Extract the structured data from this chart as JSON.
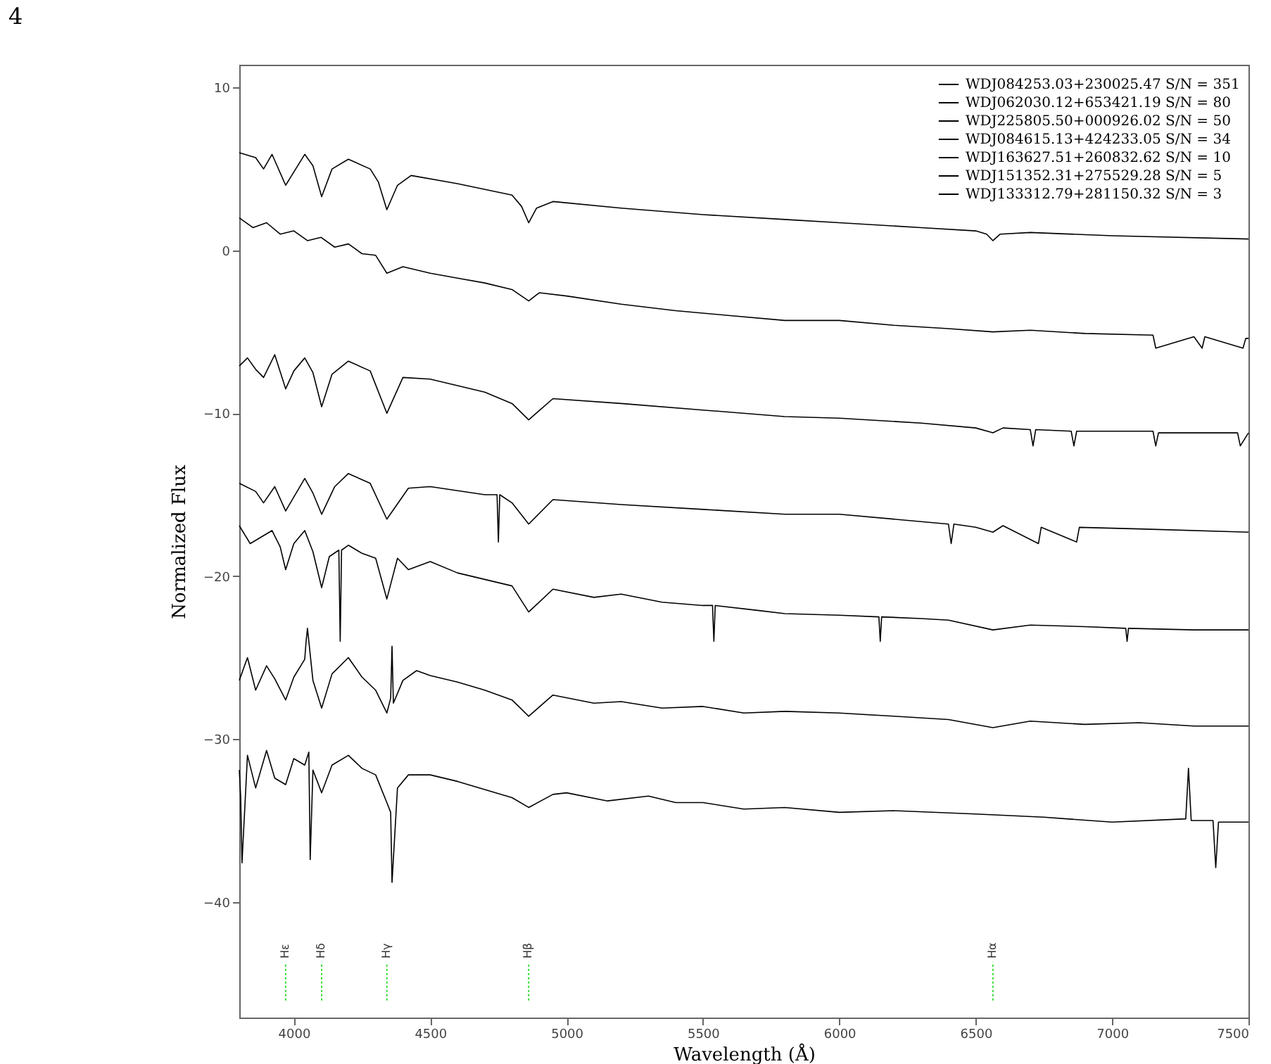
{
  "chart_data": {
    "type": "line",
    "xlabel": "Wavelength (Å)",
    "ylabel": "Normalized Flux",
    "annotations": [
      "4"
    ],
    "xlim": [
      3800,
      7500
    ],
    "ylim": [
      -47.1,
      11.4
    ],
    "xticks": [
      4000,
      4500,
      5000,
      5500,
      6000,
      6500,
      7000,
      7500
    ],
    "yticks": [
      -40,
      -30,
      -20,
      -10,
      0,
      10
    ],
    "grid": false,
    "legend": "top right",
    "series": [
      {
        "name": "WDJ084253.03+230025.47 S/N = 351",
        "color": "#000000",
        "x": [
          3800,
          3860,
          3889,
          3920,
          3970,
          4040,
          4070,
          4102,
          4140,
          4200,
          4280,
          4310,
          4341,
          4380,
          4430,
          4600,
          4800,
          4835,
          4861,
          4890,
          4950,
          5200,
          5500,
          5800,
          6000,
          6300,
          6500,
          6540,
          6563,
          6590,
          6700,
          7000,
          7500
        ],
        "values": [
          6.0,
          5.7,
          5.0,
          5.9,
          4.0,
          5.9,
          5.2,
          3.3,
          5.0,
          5.6,
          5.0,
          4.2,
          2.5,
          4.0,
          4.6,
          4.1,
          3.4,
          2.7,
          1.7,
          2.6,
          3.0,
          2.6,
          2.2,
          1.9,
          1.7,
          1.4,
          1.2,
          1.0,
          0.6,
          1.0,
          1.1,
          0.9,
          0.7
        ]
      },
      {
        "name": "WDJ062030.12+653421.19 S/N = 80",
        "color": "#000000",
        "x": [
          3800,
          3850,
          3900,
          3950,
          4000,
          4050,
          4100,
          4150,
          4200,
          4250,
          4300,
          4341,
          4400,
          4500,
          4600,
          4700,
          4800,
          4861,
          4900,
          5000,
          5200,
          5400,
          5600,
          5800,
          6000,
          6200,
          6400,
          6563,
          6700,
          6900,
          7150,
          7160,
          7300,
          7330,
          7340,
          7480,
          7490,
          7500
        ],
        "values": [
          2.0,
          1.4,
          1.7,
          1.0,
          1.2,
          0.6,
          0.8,
          0.2,
          0.4,
          -0.2,
          -0.3,
          -1.4,
          -1.0,
          -1.4,
          -1.7,
          -2.0,
          -2.4,
          -3.1,
          -2.6,
          -2.8,
          -3.3,
          -3.7,
          -4.0,
          -4.3,
          -4.3,
          -4.6,
          -4.8,
          -5.0,
          -4.9,
          -5.1,
          -5.2,
          -6.0,
          -5.3,
          -6.0,
          -5.3,
          -6.0,
          -5.4,
          -5.4
        ]
      },
      {
        "name": "WDJ225805.50+000926.02 S/N = 50",
        "color": "#000000",
        "x": [
          3800,
          3830,
          3860,
          3889,
          3930,
          3970,
          4000,
          4040,
          4070,
          4102,
          4140,
          4200,
          4280,
          4341,
          4400,
          4500,
          4600,
          4700,
          4800,
          4861,
          4950,
          5200,
          5500,
          5800,
          6000,
          6300,
          6500,
          6563,
          6600,
          6700,
          6710,
          6720,
          6850,
          6860,
          6870,
          7150,
          7160,
          7170,
          7460,
          7470,
          7500
        ],
        "values": [
          -7.1,
          -6.6,
          -7.3,
          -7.8,
          -6.4,
          -8.5,
          -7.4,
          -6.6,
          -7.5,
          -9.6,
          -7.6,
          -6.8,
          -7.4,
          -10.0,
          -7.8,
          -7.9,
          -8.3,
          -8.7,
          -9.4,
          -10.4,
          -9.1,
          -9.4,
          -9.8,
          -10.2,
          -10.3,
          -10.6,
          -10.9,
          -11.2,
          -10.9,
          -11.0,
          -12.0,
          -11.0,
          -11.1,
          -12.0,
          -11.1,
          -11.1,
          -12.0,
          -11.2,
          -11.2,
          -12.0,
          -11.2
        ]
      },
      {
        "name": "WDJ084615.13+424233.05 S/N = 34",
        "color": "#000000",
        "x": [
          3800,
          3860,
          3889,
          3930,
          3970,
          4040,
          4070,
          4102,
          4150,
          4200,
          4280,
          4341,
          4420,
          4500,
          4700,
          4745,
          4750,
          4755,
          4800,
          4861,
          4950,
          5200,
          5500,
          5800,
          6000,
          6400,
          6410,
          6420,
          6500,
          6563,
          6600,
          6730,
          6740,
          6870,
          6880,
          7100,
          7500
        ],
        "values": [
          -14.3,
          -14.8,
          -15.5,
          -14.5,
          -16.0,
          -14.0,
          -14.9,
          -16.2,
          -14.5,
          -13.7,
          -14.3,
          -16.5,
          -14.6,
          -14.5,
          -15.0,
          -15.0,
          -17.9,
          -15.0,
          -15.5,
          -16.8,
          -15.3,
          -15.6,
          -15.9,
          -16.2,
          -16.2,
          -16.8,
          -18.0,
          -16.8,
          -17.0,
          -17.3,
          -16.9,
          -18.0,
          -17.0,
          -17.9,
          -17.0,
          -17.1,
          -17.3
        ]
      },
      {
        "name": "WDJ163627.51+260832.62 S/N = 10",
        "color": "#000000",
        "x": [
          3800,
          3840,
          3880,
          3920,
          3950,
          3970,
          4000,
          4040,
          4070,
          4102,
          4130,
          4165,
          4170,
          4175,
          4200,
          4250,
          4300,
          4341,
          4380,
          4420,
          4500,
          4600,
          4700,
          4800,
          4861,
          4950,
          5100,
          5200,
          5350,
          5500,
          5535,
          5540,
          5545,
          5700,
          5800,
          6000,
          6145,
          6150,
          6155,
          6300,
          6400,
          6563,
          6700,
          6900,
          7050,
          7055,
          7060,
          7300,
          7500
        ],
        "values": [
          -16.9,
          -18.0,
          -17.6,
          -17.2,
          -18.2,
          -19.6,
          -18.0,
          -17.2,
          -18.5,
          -20.7,
          -18.8,
          -18.4,
          -24.0,
          -18.4,
          -18.1,
          -18.6,
          -18.9,
          -21.4,
          -18.9,
          -19.6,
          -19.1,
          -19.8,
          -20.2,
          -20.6,
          -22.2,
          -20.8,
          -21.3,
          -21.1,
          -21.6,
          -21.8,
          -21.8,
          -24.0,
          -21.8,
          -22.1,
          -22.3,
          -22.4,
          -22.5,
          -24.0,
          -22.5,
          -22.6,
          -22.7,
          -23.3,
          -23.0,
          -23.1,
          -23.2,
          -24.0,
          -23.2,
          -23.3,
          -23.3
        ]
      },
      {
        "name": "WDJ151352.31+275529.28 S/N = 5",
        "color": "#000000",
        "x": [
          3800,
          3830,
          3860,
          3900,
          3930,
          3970,
          4000,
          4040,
          4045,
          4050,
          4070,
          4102,
          4140,
          4200,
          4250,
          4300,
          4341,
          4355,
          4360,
          4365,
          4400,
          4450,
          4500,
          4600,
          4700,
          4800,
          4861,
          4950,
          5100,
          5200,
          5350,
          5500,
          5650,
          5800,
          6000,
          6200,
          6400,
          6563,
          6700,
          6900,
          7100,
          7300,
          7500
        ],
        "values": [
          -26.4,
          -25.0,
          -27.0,
          -25.5,
          -26.3,
          -27.6,
          -26.2,
          -25.1,
          -24.0,
          -23.2,
          -26.4,
          -28.1,
          -26.0,
          -25.0,
          -26.2,
          -27.0,
          -28.4,
          -27.5,
          -24.3,
          -27.8,
          -26.4,
          -25.8,
          -26.1,
          -26.5,
          -27.0,
          -27.6,
          -28.6,
          -27.3,
          -27.8,
          -27.7,
          -28.1,
          -28.0,
          -28.4,
          -28.3,
          -28.4,
          -28.6,
          -28.8,
          -29.3,
          -28.9,
          -29.1,
          -29.0,
          -29.2,
          -29.2
        ]
      },
      {
        "name": "WDJ133312.79+281150.32 S/N = 3",
        "color": "#000000",
        "x": [
          3800,
          3805,
          3810,
          3830,
          3860,
          3900,
          3930,
          3970,
          4000,
          4040,
          4055,
          4060,
          4070,
          4102,
          4140,
          4200,
          4250,
          4300,
          4341,
          4355,
          4360,
          4380,
          4420,
          4500,
          4600,
          4700,
          4800,
          4861,
          4950,
          5000,
          5150,
          5300,
          5400,
          5500,
          5650,
          5800,
          6000,
          6200,
          6500,
          6750,
          7000,
          7270,
          7280,
          7290,
          7370,
          7380,
          7390,
          7500
        ],
        "values": [
          -31.9,
          -33.5,
          -37.6,
          -31.0,
          -33.0,
          -30.7,
          -32.4,
          -32.8,
          -31.2,
          -31.6,
          -30.8,
          -37.4,
          -31.9,
          -33.3,
          -31.6,
          -31.0,
          -31.8,
          -32.2,
          -33.9,
          -34.5,
          -38.8,
          -33.0,
          -32.2,
          -32.2,
          -32.6,
          -33.1,
          -33.6,
          -34.2,
          -33.4,
          -33.3,
          -33.8,
          -33.5,
          -33.9,
          -33.9,
          -34.3,
          -34.2,
          -34.5,
          -34.4,
          -34.6,
          -34.8,
          -35.1,
          -34.9,
          -31.8,
          -35.0,
          -35.0,
          -37.9,
          -35.1,
          -35.1
        ]
      }
    ],
    "ref_lines": [
      {
        "axis": "x",
        "value": 3970,
        "label": "Hε",
        "color": "#33dd33",
        "line_style": "dotted"
      },
      {
        "axis": "x",
        "value": 4102,
        "label": "Hδ",
        "color": "#33dd33",
        "line_style": "dotted"
      },
      {
        "axis": "x",
        "value": 4341,
        "label": "Hγ",
        "color": "#33dd33",
        "line_style": "dotted"
      },
      {
        "axis": "x",
        "value": 4861,
        "label": "Hβ",
        "color": "#33dd33",
        "line_style": "dotted"
      },
      {
        "axis": "x",
        "value": 6563,
        "label": "Hα",
        "color": "#33dd33",
        "line_style": "dotted"
      }
    ]
  }
}
